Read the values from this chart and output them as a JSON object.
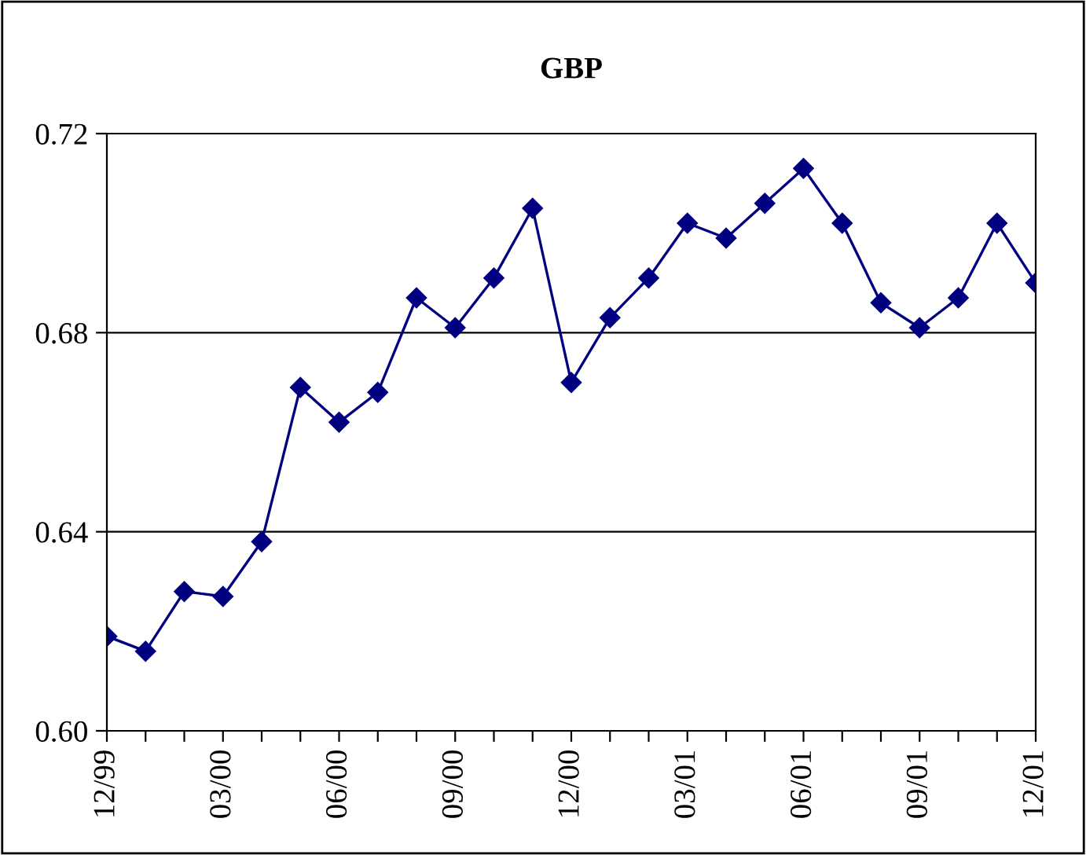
{
  "chart_data": {
    "type": "line",
    "title": "GBP",
    "categories": [
      "12/99",
      null,
      null,
      "03/00",
      null,
      null,
      "06/00",
      null,
      null,
      "09/00",
      null,
      null,
      "12/00",
      null,
      null,
      "03/01",
      null,
      null,
      "06/01",
      null,
      null,
      "09/01",
      null,
      null,
      "12/01"
    ],
    "series": [
      {
        "color": "#000080",
        "values": [
          0.619,
          0.616,
          0.628,
          0.627,
          0.638,
          0.669,
          0.662,
          0.668,
          0.687,
          0.681,
          0.691,
          0.705,
          0.67,
          0.683,
          0.691,
          0.702,
          0.699,
          0.706,
          0.713,
          0.702,
          0.686,
          0.681,
          0.687,
          0.702,
          0.69
        ]
      }
    ],
    "ylim": [
      0.6,
      0.72
    ],
    "yticks": [
      {
        "value": 0.6,
        "label": "0.60"
      },
      {
        "value": 0.64,
        "label": "0.64"
      },
      {
        "value": 0.68,
        "label": "0.68"
      },
      {
        "value": 0.72,
        "label": "0.72"
      }
    ],
    "grid": "y",
    "marker": "diamond",
    "line_style": "solid",
    "legend": false
  }
}
